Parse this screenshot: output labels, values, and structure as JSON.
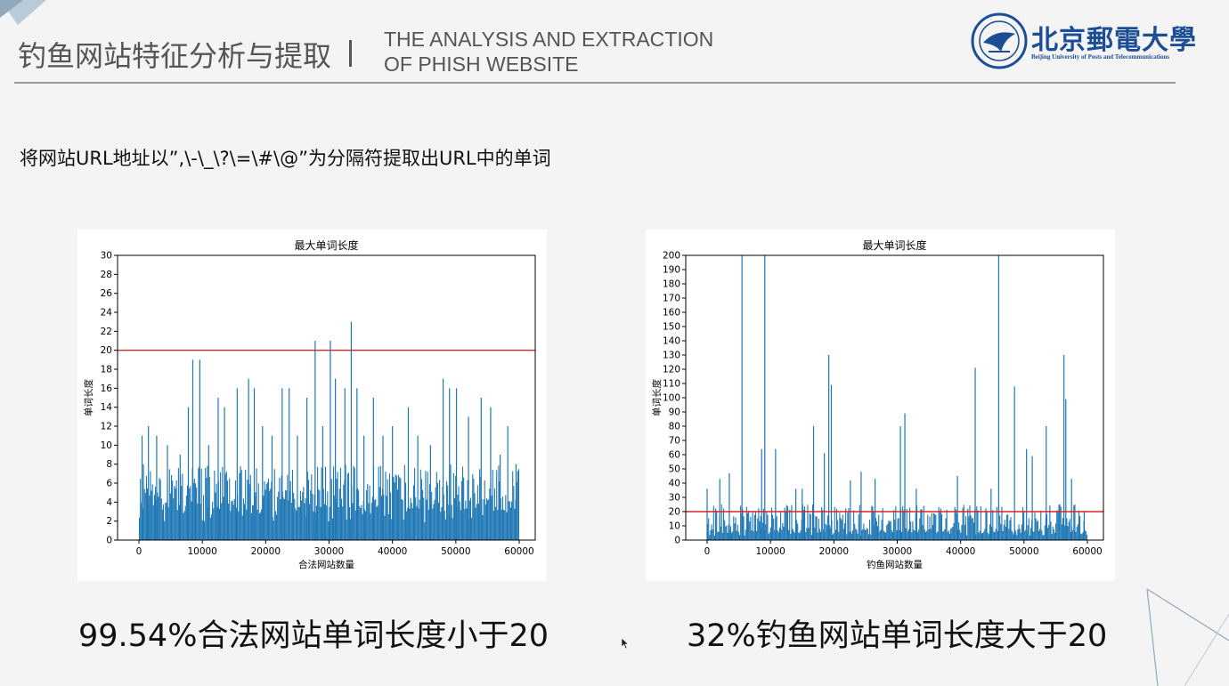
{
  "header": {
    "title_cn": "钓鱼网站特征分析与提取",
    "title_en_line1": "THE ANALYSIS AND EXTRACTION",
    "title_en_line2": "OF PHISH WEBSITE",
    "logo_cn": "北京郵電大學",
    "logo_en": "Beijing University of Posts and Telecommunications"
  },
  "description": "将网站URL地址以”,\\-\\_\\?\\=\\#\\@”为分隔符提取出URL中的单词",
  "captions": {
    "left": "99.54%合法网站单词长度小于20",
    "right": "32%钓鱼网站单词长度大于20"
  },
  "colors": {
    "bar": "#1f77b4",
    "threshold": "#d62728",
    "logo": "#1c4e96",
    "deco": "#6b8aa3"
  },
  "chart_data": [
    {
      "type": "bar",
      "title": "最大单词长度",
      "xlabel": "合法网站数量",
      "ylabel": "单词长度",
      "xlim": [
        0,
        60000
      ],
      "ylim": [
        0,
        30
      ],
      "xticks": [
        "0",
        "10000",
        "20000",
        "30000",
        "40000",
        "50000",
        "60000"
      ],
      "yticks": [
        "0",
        "2",
        "4",
        "6",
        "8",
        "10",
        "12",
        "14",
        "16",
        "18",
        "20",
        "22",
        "24",
        "26",
        "28",
        "30"
      ],
      "threshold": 20,
      "peaks": [
        {
          "x": 500,
          "y": 11
        },
        {
          "x": 1500,
          "y": 12
        },
        {
          "x": 2800,
          "y": 11
        },
        {
          "x": 4500,
          "y": 10
        },
        {
          "x": 6500,
          "y": 9
        },
        {
          "x": 7800,
          "y": 14
        },
        {
          "x": 8500,
          "y": 19
        },
        {
          "x": 9600,
          "y": 19
        },
        {
          "x": 11000,
          "y": 10
        },
        {
          "x": 12500,
          "y": 15
        },
        {
          "x": 13500,
          "y": 14
        },
        {
          "x": 15500,
          "y": 16
        },
        {
          "x": 17300,
          "y": 17
        },
        {
          "x": 18200,
          "y": 16
        },
        {
          "x": 19500,
          "y": 12
        },
        {
          "x": 21000,
          "y": 11
        },
        {
          "x": 22600,
          "y": 16
        },
        {
          "x": 23700,
          "y": 16
        },
        {
          "x": 25000,
          "y": 11
        },
        {
          "x": 26500,
          "y": 15
        },
        {
          "x": 27800,
          "y": 21
        },
        {
          "x": 29000,
          "y": 12
        },
        {
          "x": 30200,
          "y": 21
        },
        {
          "x": 31000,
          "y": 17
        },
        {
          "x": 32500,
          "y": 16
        },
        {
          "x": 33500,
          "y": 23
        },
        {
          "x": 34400,
          "y": 16
        },
        {
          "x": 35500,
          "y": 11
        },
        {
          "x": 37000,
          "y": 15
        },
        {
          "x": 38500,
          "y": 11
        },
        {
          "x": 40000,
          "y": 12
        },
        {
          "x": 42500,
          "y": 14
        },
        {
          "x": 44000,
          "y": 11
        },
        {
          "x": 46000,
          "y": 10
        },
        {
          "x": 48000,
          "y": 17
        },
        {
          "x": 49000,
          "y": 16
        },
        {
          "x": 50100,
          "y": 16
        },
        {
          "x": 52000,
          "y": 13
        },
        {
          "x": 54000,
          "y": 15
        },
        {
          "x": 55500,
          "y": 14
        },
        {
          "x": 57000,
          "y": 9
        },
        {
          "x": 58200,
          "y": 12
        },
        {
          "x": 59500,
          "y": 8
        }
      ],
      "baseline": [
        3,
        8
      ]
    },
    {
      "type": "bar",
      "title": "最大单词长度",
      "xlabel": "钓鱼网站数量",
      "ylabel": "单词长度",
      "xlim": [
        0,
        60000
      ],
      "ylim": [
        0,
        200
      ],
      "xticks": [
        "0",
        "10000",
        "20000",
        "30000",
        "40000",
        "50000",
        "60000"
      ],
      "yticks": [
        "0",
        "10",
        "20",
        "30",
        "40",
        "50",
        "60",
        "70",
        "80",
        "90",
        "100",
        "110",
        "120",
        "130",
        "140",
        "150",
        "160",
        "170",
        "180",
        "190",
        "200"
      ],
      "threshold": 20,
      "peaks": [
        {
          "x": 0,
          "y": 36
        },
        {
          "x": 2000,
          "y": 43
        },
        {
          "x": 3500,
          "y": 47
        },
        {
          "x": 5500,
          "y": 200
        },
        {
          "x": 8600,
          "y": 64
        },
        {
          "x": 9100,
          "y": 200
        },
        {
          "x": 10800,
          "y": 64
        },
        {
          "x": 14000,
          "y": 36
        },
        {
          "x": 15000,
          "y": 36
        },
        {
          "x": 16800,
          "y": 80
        },
        {
          "x": 18500,
          "y": 61
        },
        {
          "x": 19200,
          "y": 130
        },
        {
          "x": 19600,
          "y": 109
        },
        {
          "x": 22600,
          "y": 42
        },
        {
          "x": 24300,
          "y": 48
        },
        {
          "x": 26500,
          "y": 43
        },
        {
          "x": 30500,
          "y": 80
        },
        {
          "x": 31200,
          "y": 89
        },
        {
          "x": 33000,
          "y": 36
        },
        {
          "x": 39500,
          "y": 45
        },
        {
          "x": 42300,
          "y": 121
        },
        {
          "x": 44800,
          "y": 36
        },
        {
          "x": 46000,
          "y": 200
        },
        {
          "x": 48500,
          "y": 108
        },
        {
          "x": 50400,
          "y": 64
        },
        {
          "x": 51300,
          "y": 59
        },
        {
          "x": 53500,
          "y": 80
        },
        {
          "x": 56300,
          "y": 130
        },
        {
          "x": 56600,
          "y": 99
        },
        {
          "x": 57500,
          "y": 43
        },
        {
          "x": 59500,
          "y": 20
        }
      ],
      "baseline": [
        5,
        25
      ]
    }
  ]
}
